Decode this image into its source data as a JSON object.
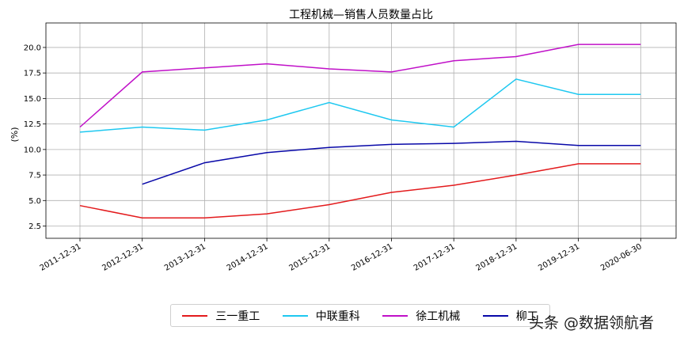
{
  "chart_data": {
    "type": "line",
    "title": "工程机械—销售人员数量占比",
    "xlabel": "",
    "ylabel": "(%)",
    "categories": [
      "2011-12-31",
      "2012-12-31",
      "2013-12-31",
      "2014-12-31",
      "2015-12-31",
      "2016-12-31",
      "2017-12-31",
      "2018-12-31",
      "2019-12-31",
      "2020-06-30"
    ],
    "y_ticks": [
      "2.5",
      "5.0",
      "7.5",
      "10.0",
      "12.5",
      "15.0",
      "17.5",
      "20.0"
    ],
    "ylim": [
      1.3,
      22.4
    ],
    "grid": true,
    "legend_position": "bottom-center",
    "series": [
      {
        "name": "三一重工",
        "color": "#e31a1c",
        "values": [
          4.5,
          3.3,
          3.3,
          3.7,
          4.6,
          5.8,
          6.5,
          7.5,
          8.6,
          8.6
        ]
      },
      {
        "name": "中联重科",
        "color": "#1ec8f0",
        "values": [
          11.7,
          12.2,
          11.9,
          12.9,
          14.6,
          12.9,
          12.2,
          16.9,
          15.4,
          15.4
        ]
      },
      {
        "name": "徐工机械",
        "color": "#c010c8",
        "values": [
          12.2,
          17.6,
          18.0,
          18.4,
          17.9,
          17.6,
          18.7,
          19.1,
          20.3,
          20.3
        ]
      },
      {
        "name": "柳工",
        "color": "#0808a8",
        "values": [
          null,
          6.6,
          8.7,
          9.7,
          10.2,
          10.5,
          10.6,
          10.8,
          10.4,
          10.4
        ]
      }
    ]
  },
  "watermark": "头条 @数据领航者"
}
